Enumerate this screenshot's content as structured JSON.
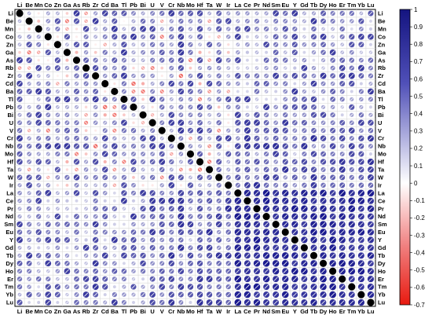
{
  "chart_data": {
    "type": "heatmap",
    "subtype": "correlogram",
    "labels": [
      "Li",
      "Be",
      "Mn",
      "Co",
      "Zn",
      "Ga",
      "As",
      "Rb",
      "Zr",
      "Cd",
      "Ba",
      "Tl",
      "Pb",
      "Bi",
      "U",
      "V",
      "Cr",
      "Nb",
      "Mo",
      "Hf",
      "Ta",
      "W",
      "Ir",
      "La",
      "Ce",
      "Pr",
      "Nd",
      "Sm",
      "Eu",
      "Y",
      "Gd",
      "Tb",
      "Dy",
      "Ho",
      "Er",
      "Tm",
      "Yb",
      "Lu"
    ],
    "diagonal_value": 1,
    "colorbar": {
      "min": -0.7,
      "max": 1,
      "ticks": [
        1,
        0.9,
        0.8,
        0.7,
        0.6,
        0.5,
        0.4,
        0.3,
        0.2,
        0.1,
        0,
        -0.1,
        -0.2,
        -0.3,
        -0.4,
        -0.5,
        -0.6,
        -0.7
      ],
      "tick_labels": [
        "1",
        "0.9",
        "0.8",
        "0.7",
        "0.6",
        "0.5",
        "0.4",
        "0.3",
        "0.2",
        "0.1",
        "0",
        "-0.1",
        "-0.2",
        "-0.3",
        "-0.4",
        "-0.5",
        "-0.6",
        "-0.7"
      ],
      "colors": {
        "positive": "#1a1a8c",
        "zero": "#ffffff",
        "negative": "#e8201a"
      }
    },
    "lower_triangle": "circle size and color proportional to correlation",
    "upper_triangle": "circle with pie fill proportional to correlation",
    "grid": true
  }
}
